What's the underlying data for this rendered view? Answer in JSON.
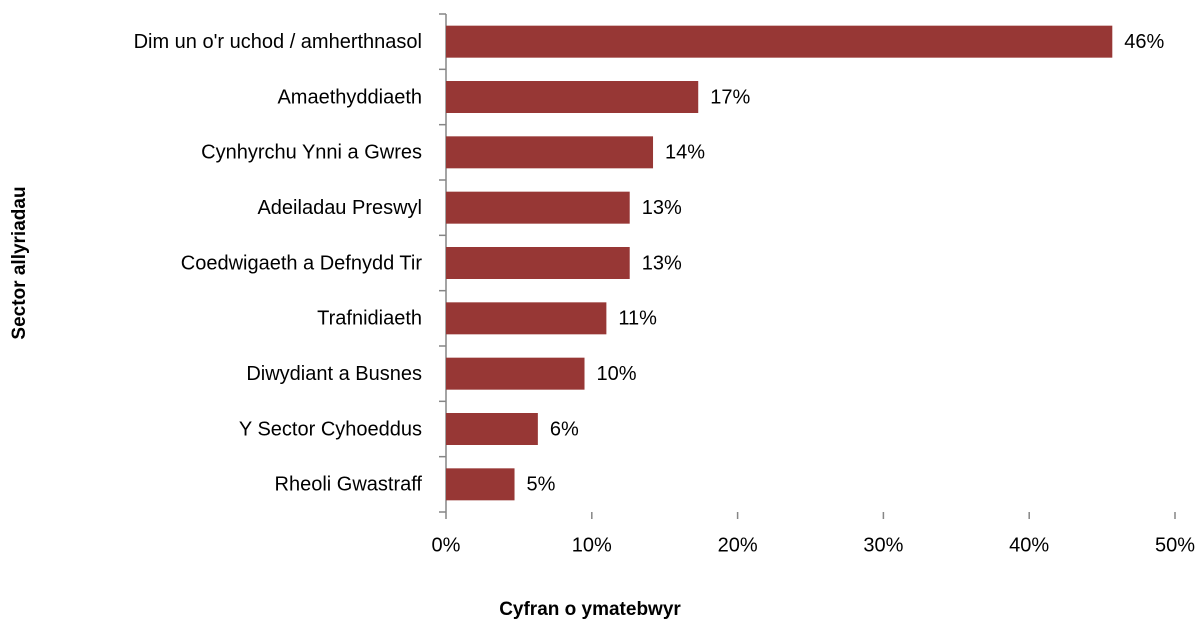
{
  "chart_data": {
    "type": "bar",
    "orientation": "horizontal",
    "xlabel": "Cyfran o ymatebwyr",
    "ylabel": "Sector allyriadau",
    "categories": [
      "Dim un o'r uchod / amherthnasol",
      "Amaethyddiaeth",
      "Cynhyrchu Ynni a Gwres",
      "Adeiladau Preswyl",
      "Coedwigaeth a Defnydd Tir",
      "Trafnidiaeth",
      "Diwydiant a Busnes",
      "Y Sector Cyhoeddus",
      "Rheoli Gwastraff"
    ],
    "values": [
      45.7,
      17.3,
      14.2,
      12.6,
      12.6,
      11.0,
      9.5,
      6.3,
      4.7
    ],
    "value_labels": [
      "46%",
      "17%",
      "14%",
      "13%",
      "13%",
      "11%",
      "10%",
      "6%",
      "5%"
    ],
    "color": "#973735",
    "xlim": [
      0,
      50
    ],
    "xticks": [
      {
        "value": 0,
        "label": "0%"
      },
      {
        "value": 10,
        "label": "10%"
      },
      {
        "value": 20,
        "label": "20%"
      },
      {
        "value": 30,
        "label": "30%"
      },
      {
        "value": 40,
        "label": "40%"
      },
      {
        "value": 50,
        "label": "50%"
      }
    ],
    "grid": false
  }
}
